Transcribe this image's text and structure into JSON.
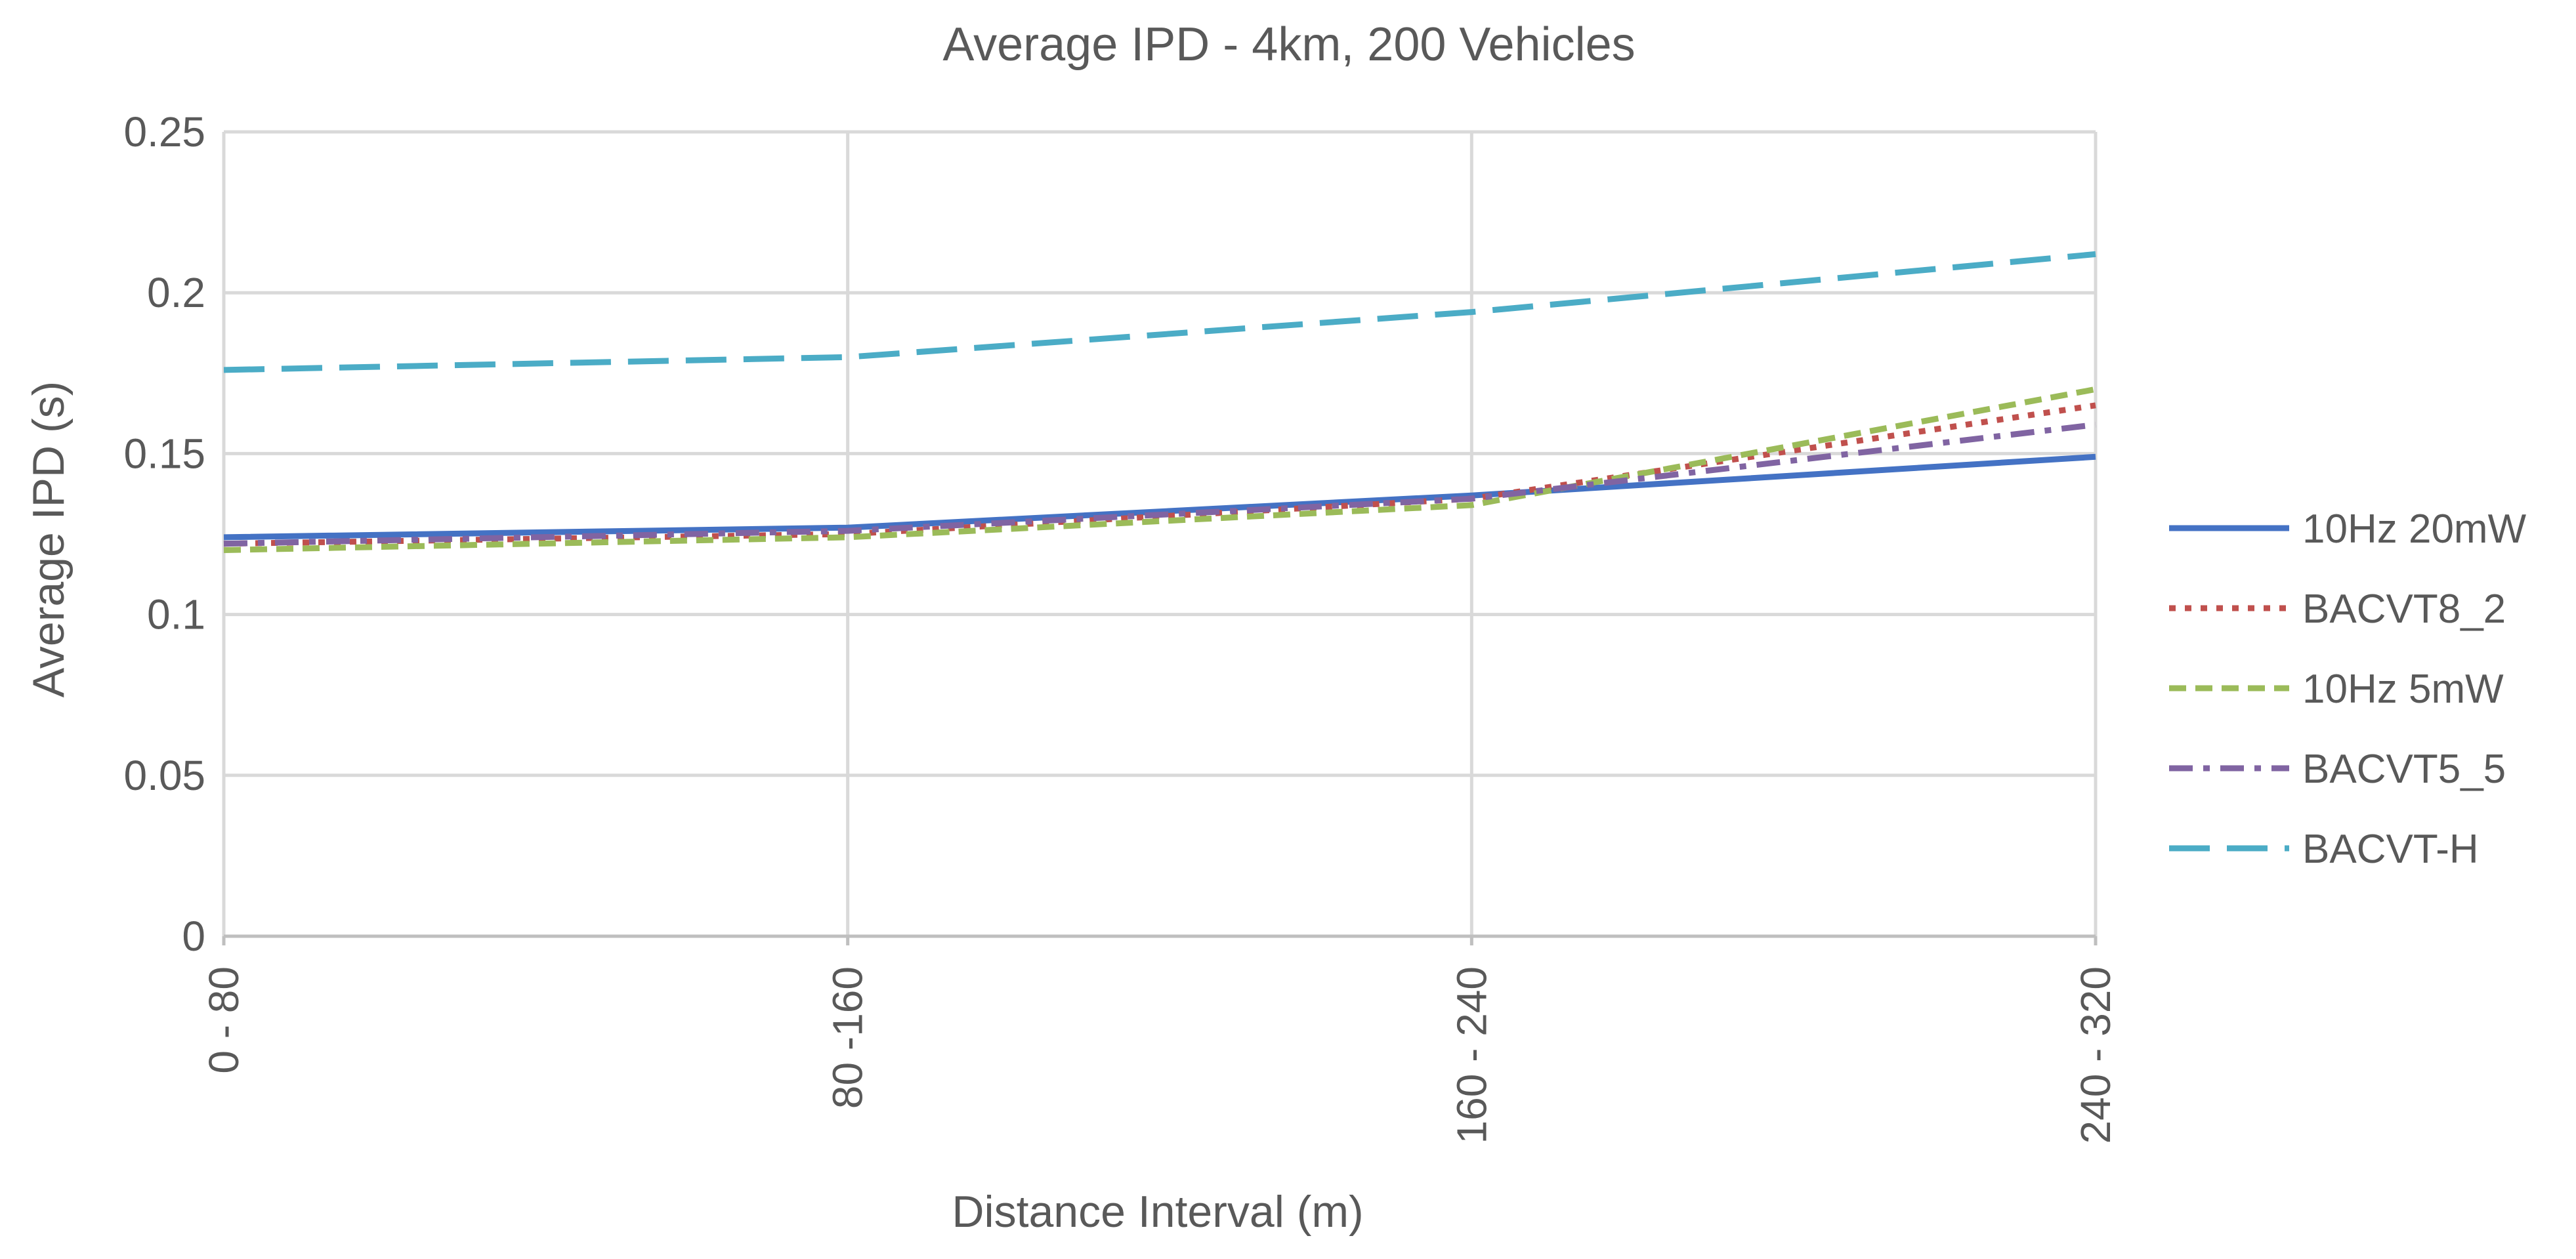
{
  "chart_data": {
    "type": "line",
    "title": "Average IPD - 4km, 200 Vehicles",
    "xlabel": "Distance Interval (m)",
    "ylabel": "Average IPD (s)",
    "categories": [
      "0 - 80",
      "80 -160",
      "160 - 240",
      "240 - 320"
    ],
    "ylim": [
      0,
      0.25
    ],
    "yticks": [
      {
        "value": 0,
        "label": "0"
      },
      {
        "value": 0.05,
        "label": "0.05"
      },
      {
        "value": 0.1,
        "label": "0.1"
      },
      {
        "value": 0.15,
        "label": "0.15"
      },
      {
        "value": 0.2,
        "label": "0.2"
      },
      {
        "value": 0.25,
        "label": "0.25"
      }
    ],
    "grid": true,
    "legend_position": "right",
    "series": [
      {
        "name": "10Hz 20mW",
        "values": [
          0.124,
          0.127,
          0.137,
          0.149
        ],
        "color": "#4472c4",
        "dash": "solid"
      },
      {
        "name": "BACVT8_2",
        "values": [
          0.122,
          0.125,
          0.136,
          0.165
        ],
        "color": "#c0504d",
        "dash": "dot"
      },
      {
        "name": "10Hz 5mW",
        "values": [
          0.12,
          0.124,
          0.134,
          0.17
        ],
        "color": "#9bbb59",
        "dash": "dash"
      },
      {
        "name": "BACVT5_5",
        "values": [
          0.122,
          0.126,
          0.136,
          0.159
        ],
        "color": "#8064a2",
        "dash": "dashdot"
      },
      {
        "name": "BACVT-H",
        "values": [
          0.176,
          0.18,
          0.194,
          0.212
        ],
        "color": "#4bacc6",
        "dash": "longdash"
      }
    ]
  }
}
